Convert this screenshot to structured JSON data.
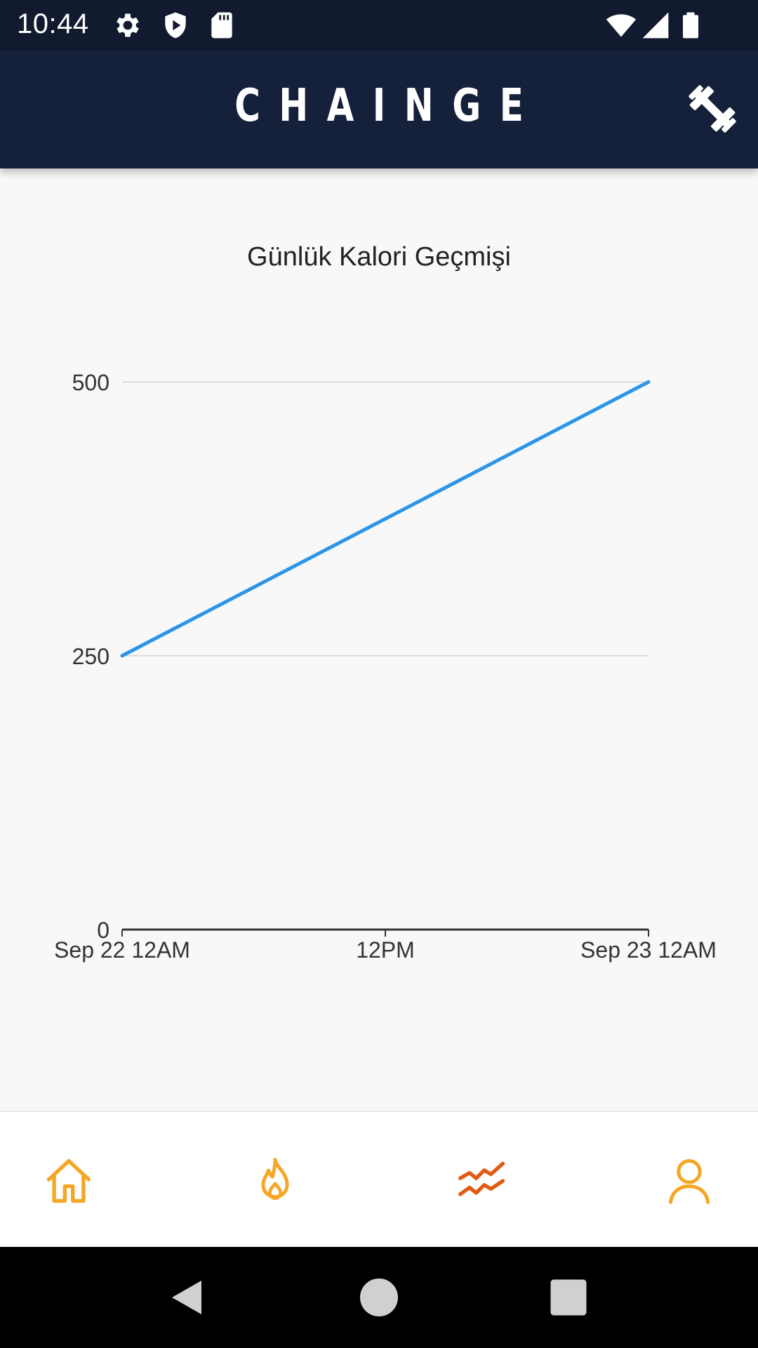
{
  "status_bar": {
    "time": "10:44",
    "icons": [
      "settings-icon",
      "shield-play-icon",
      "sd-card-icon",
      "wifi-icon",
      "signal-icon",
      "battery-icon"
    ]
  },
  "app_bar": {
    "title": "CHAINGE",
    "action_icon": "dumbbell-icon"
  },
  "chart_data": {
    "type": "line",
    "title": "Günlük Kalori Geçmişi",
    "x_ticks": [
      "Sep 22 12AM",
      "12PM",
      "Sep 23 12AM"
    ],
    "y_ticks": [
      "0",
      "250",
      "500"
    ],
    "ylim": [
      0,
      500
    ],
    "grid": true,
    "series": [
      {
        "x": [
          "Sep 22 12AM",
          "Sep 23 12AM"
        ],
        "values": [
          250,
          500
        ],
        "color": "#2b95e9"
      }
    ]
  },
  "bottom_nav": {
    "items": [
      {
        "icon": "home-icon",
        "color": "#f5a623"
      },
      {
        "icon": "flame-icon",
        "color": "#f5a623"
      },
      {
        "icon": "chart-trend-icon",
        "color": "#e05a12"
      },
      {
        "icon": "profile-icon",
        "color": "#f5a623"
      }
    ]
  },
  "system_nav": {
    "icons": [
      "back-icon",
      "home-circle-icon",
      "recents-icon"
    ]
  }
}
